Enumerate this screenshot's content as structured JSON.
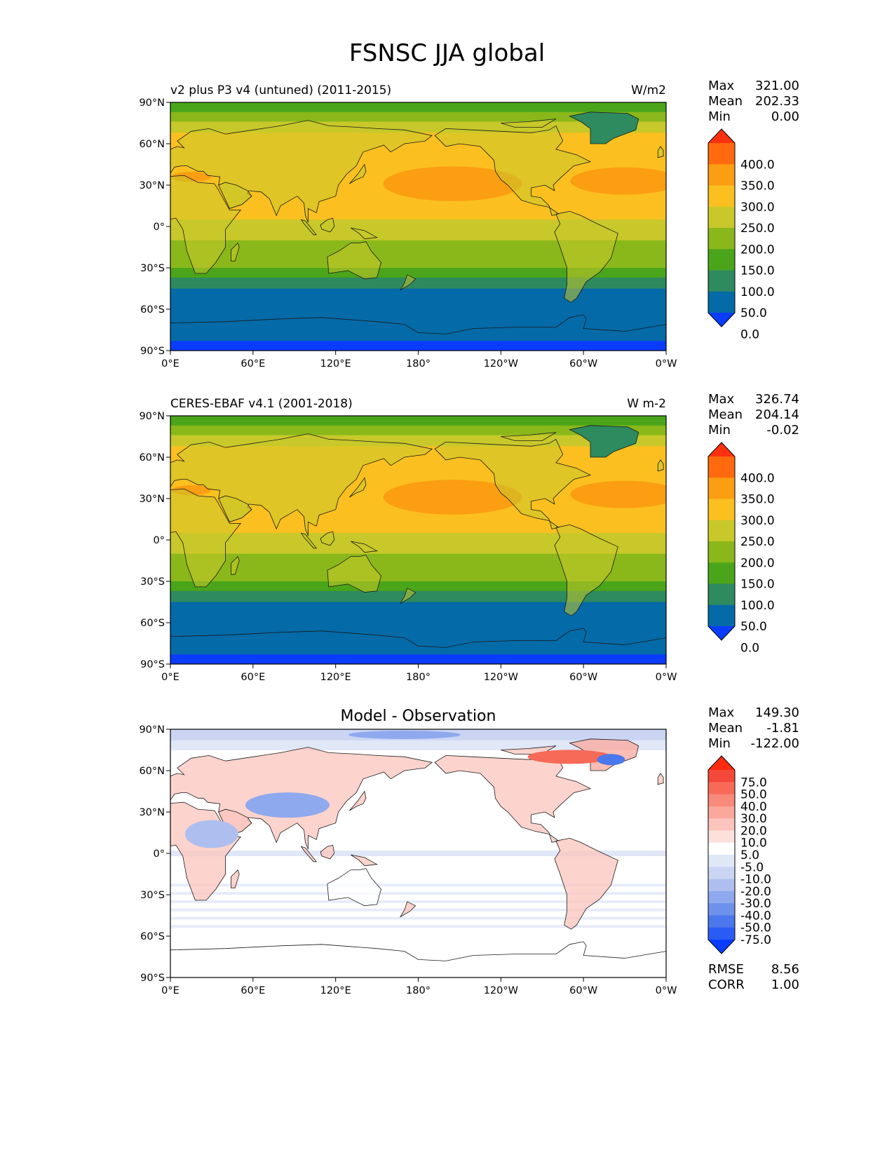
{
  "figure": {
    "title": "FSNSC JJA global"
  },
  "colors": {
    "abs_levels": [
      "#0a3cff",
      "#046aa8",
      "#2e8a5f",
      "#4aa51a",
      "#8ab81a",
      "#c8c82a",
      "#fbc020",
      "#fb9e12",
      "#ff6a0e",
      "#ff3010"
    ],
    "diff_levels": [
      "#0a3cff",
      "#2a5cf5",
      "#4b78ec",
      "#6e92ec",
      "#8fa9ee",
      "#aebfef",
      "#cad5f3",
      "#e0e7f7",
      "#ffffff",
      "#fbe0dc",
      "#fcc4bc",
      "#fba79b",
      "#f9897a",
      "#f86a58",
      "#f4483a",
      "#ff2a10"
    ],
    "coastline": "#1a1a1a"
  },
  "panels": [
    {
      "id": "model",
      "title_left": "v2 plus P3 v4 (untuned) (2011-2015)",
      "title_center": "",
      "units": "W/m2",
      "stats": [
        {
          "label": "Max",
          "value": "321.00"
        },
        {
          "label": "Mean",
          "value": "202.33"
        },
        {
          "label": "Min",
          "value": "0.00"
        }
      ],
      "colorbar": {
        "ticks": [
          "400.0",
          "350.0",
          "300.0",
          "250.0",
          "200.0",
          "150.0",
          "100.0",
          "50.0",
          "0.0"
        ]
      },
      "footer_stats": []
    },
    {
      "id": "obs",
      "title_left": "CERES-EBAF v4.1 (2001-2018)",
      "title_center": "",
      "units": "W m-2",
      "stats": [
        {
          "label": "Max",
          "value": "326.74"
        },
        {
          "label": "Mean",
          "value": "204.14"
        },
        {
          "label": "Min",
          "value": "-0.02"
        }
      ],
      "colorbar": {
        "ticks": [
          "400.0",
          "350.0",
          "300.0",
          "250.0",
          "200.0",
          "150.0",
          "100.0",
          "50.0",
          "0.0"
        ]
      },
      "footer_stats": []
    },
    {
      "id": "diff",
      "title_left": "",
      "title_center": "Model - Observation",
      "units": "",
      "stats": [
        {
          "label": "Max",
          "value": "149.30"
        },
        {
          "label": "Mean",
          "value": "-1.81"
        },
        {
          "label": "Min",
          "value": "-122.00"
        }
      ],
      "colorbar": {
        "ticks": [
          "75.0",
          "50.0",
          "40.0",
          "30.0",
          "20.0",
          "10.0",
          "5.0",
          "-5.0",
          "-10.0",
          "-20.0",
          "-30.0",
          "-40.0",
          "-50.0",
          "-75.0"
        ]
      },
      "footer_stats": [
        {
          "label": "RMSE",
          "value": "8.56"
        },
        {
          "label": "CORR",
          "value": "1.00"
        }
      ]
    }
  ],
  "axes": {
    "lat_ticks": [
      "90°N",
      "60°N",
      "30°N",
      "0°",
      "30°S",
      "60°S",
      "90°S"
    ],
    "lon_ticks": [
      "0°E",
      "60°E",
      "120°E",
      "180°",
      "120°W",
      "60°W",
      "0°W"
    ]
  }
}
